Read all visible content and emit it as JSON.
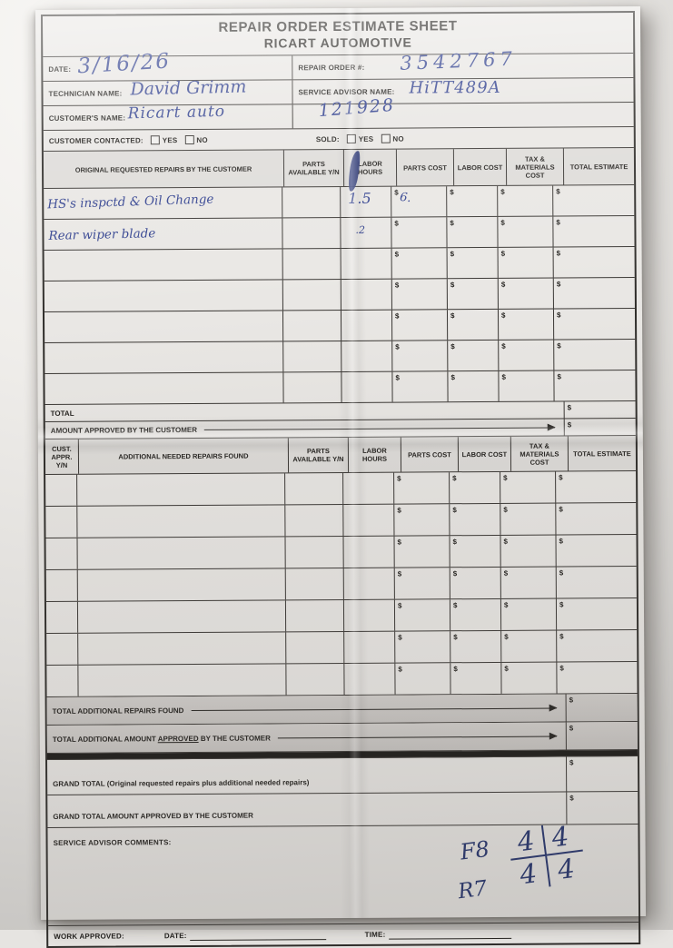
{
  "form": {
    "currency": "$",
    "title": {
      "line1": "REPAIR ORDER ESTIMATE SHEET",
      "line2": "RICART AUTOMOTIVE"
    },
    "info": {
      "date_label": "DATE:",
      "date_value": "3/16/26",
      "repair_order_label": "REPAIR ORDER #:",
      "repair_order_value": "3542767",
      "technician_label": "TECHNICIAN NAME:",
      "technician_value": "David Grimm",
      "advisor_label": "SERVICE ADVISOR NAME:",
      "advisor_value": "HiTT489A",
      "customer_label": "CUSTOMER'S NAME:",
      "customer_value": "Ricart auto",
      "customer_number": "121928",
      "contacted_label": "CUSTOMER CONTACTED:",
      "sold_label": "SOLD:",
      "yes": "YES",
      "no": "NO"
    },
    "table1": {
      "headers": [
        "ORIGINAL REQUESTED REPAIRS BY THE CUSTOMER",
        "PARTS AVAILABLE Y/N",
        "LABOR HOURS",
        "PARTS COST",
        "LABOR COST",
        "TAX & MATERIALS COST",
        "TOTAL ESTIMATE"
      ],
      "rows": [
        {
          "description": "HS's inspctd & Oil Change",
          "labor_hours": "1.5",
          "parts_cost_note": "6."
        },
        {
          "description": "Rear wiper blade",
          "labor_hours": ".2"
        },
        {},
        {},
        {},
        {},
        {}
      ],
      "total_label": "TOTAL",
      "amount_approved_label": "AMOUNT APPROVED BY THE CUSTOMER"
    },
    "table2": {
      "headers": [
        "CUST. APPR. Y/N",
        "ADDITIONAL NEEDED REPAIRS FOUND",
        "PARTS AVAILABLE Y/N",
        "LABOR HOURS",
        "PARTS COST",
        "LABOR COST",
        "TAX & MATERIALS COST",
        "TOTAL ESTIMATE"
      ],
      "total_additional_label": "TOTAL ADDITIONAL REPAIRS FOUND",
      "total_additional_approved": {
        "pre": "TOTAL ADDITIONAL AMOUNT ",
        "underlined": "APPROVED",
        "post": " BY THE CUSTOMER"
      }
    },
    "summary": {
      "grand_total_label": "GRAND TOTAL (Original requested repairs plus additional needed repairs)",
      "grand_total_approved_label": "GRAND TOTAL AMOUNT APPROVED BY THE CUSTOMER"
    },
    "comments": {
      "label": "SERVICE ADVISOR COMMENTS:",
      "front_code": "F8",
      "rear_code": "R7",
      "tread_values": [
        "4",
        "4",
        "4",
        "4"
      ]
    },
    "footer": {
      "work_approved_label": "WORK APPROVED:",
      "date_label": "DATE:",
      "time_label": "TIME:"
    }
  }
}
